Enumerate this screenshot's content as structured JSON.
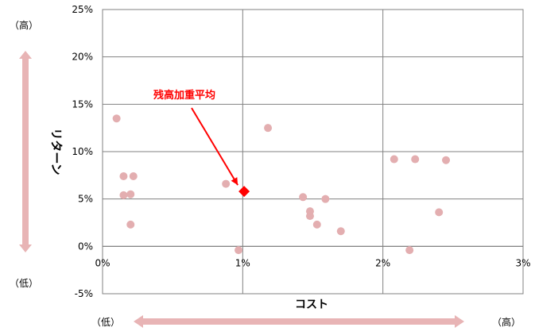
{
  "chart_data": {
    "type": "scatter",
    "title": "",
    "xlabel": "コスト",
    "ylabel": "リターン",
    "xlim": [
      0,
      3
    ],
    "ylim": [
      -5,
      25
    ],
    "xticks": [
      "0%",
      "1%",
      "2%",
      "3%"
    ],
    "yticks": [
      "-5%",
      "0%",
      "5%",
      "10%",
      "15%",
      "20%",
      "25%"
    ],
    "x_unit": "%",
    "y_unit": "%",
    "grid": true,
    "points": [
      {
        "x": 0.1,
        "y": 13.5
      },
      {
        "x": 0.15,
        "y": 7.4
      },
      {
        "x": 0.22,
        "y": 7.4
      },
      {
        "x": 0.15,
        "y": 5.4
      },
      {
        "x": 0.2,
        "y": 5.5
      },
      {
        "x": 0.2,
        "y": 2.3
      },
      {
        "x": 0.88,
        "y": 6.6
      },
      {
        "x": 0.97,
        "y": -0.4
      },
      {
        "x": 1.18,
        "y": 12.5
      },
      {
        "x": 1.43,
        "y": 5.2
      },
      {
        "x": 1.48,
        "y": 3.7
      },
      {
        "x": 1.48,
        "y": 3.2
      },
      {
        "x": 1.53,
        "y": 2.3
      },
      {
        "x": 1.59,
        "y": 5.0
      },
      {
        "x": 1.7,
        "y": 1.6
      },
      {
        "x": 2.08,
        "y": 9.2
      },
      {
        "x": 2.23,
        "y": 9.2
      },
      {
        "x": 2.45,
        "y": 9.1
      },
      {
        "x": 2.4,
        "y": 3.6
      },
      {
        "x": 2.19,
        "y": -0.4
      }
    ],
    "highlight": {
      "label": "残高加重平均",
      "x": 1.01,
      "y": 5.8
    },
    "point_color": "#e3aeb0",
    "highlight_color": "#ff0000",
    "arrow_color": "#e8b4b5"
  },
  "labels": {
    "x_low": "（低）",
    "x_high": "（高）",
    "y_high": "（高）",
    "y_low": "（低）"
  }
}
